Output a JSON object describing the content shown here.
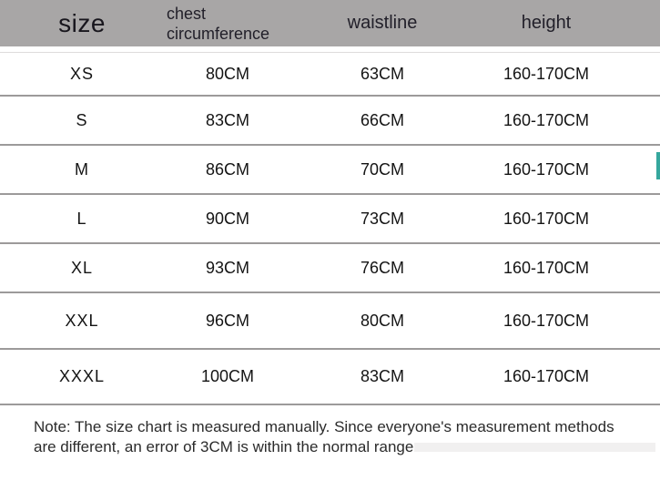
{
  "header": {
    "columns": [
      "size",
      "chest circumference",
      "waistline",
      "height"
    ]
  },
  "table": {
    "rows": [
      {
        "size": "XS",
        "chest": "80CM",
        "waist": "63CM",
        "height": "160-170CM"
      },
      {
        "size": "S",
        "chest": "83CM",
        "waist": "66CM",
        "height": "160-170CM"
      },
      {
        "size": "M",
        "chest": "86CM",
        "waist": "70CM",
        "height": "160-170CM"
      },
      {
        "size": "L",
        "chest": "90CM",
        "waist": "73CM",
        "height": "160-170CM"
      },
      {
        "size": "XL",
        "chest": "93CM",
        "waist": "76CM",
        "height": "160-170CM"
      },
      {
        "size": "XXL",
        "chest": "96CM",
        "waist": "80CM",
        "height": "160-170CM"
      },
      {
        "size": "XXXL",
        "chest": "100CM",
        "waist": "83CM",
        "height": "160-170CM"
      }
    ]
  },
  "note": "Note: The size chart is measured manually. Since everyone's measurement methods are different, an error of 3CM is within the normal range.",
  "colors": {
    "header_bg": "#a8a6a6",
    "divider": "#9c9a9a",
    "text": "#141414",
    "accent_teal": "#35a79d"
  }
}
